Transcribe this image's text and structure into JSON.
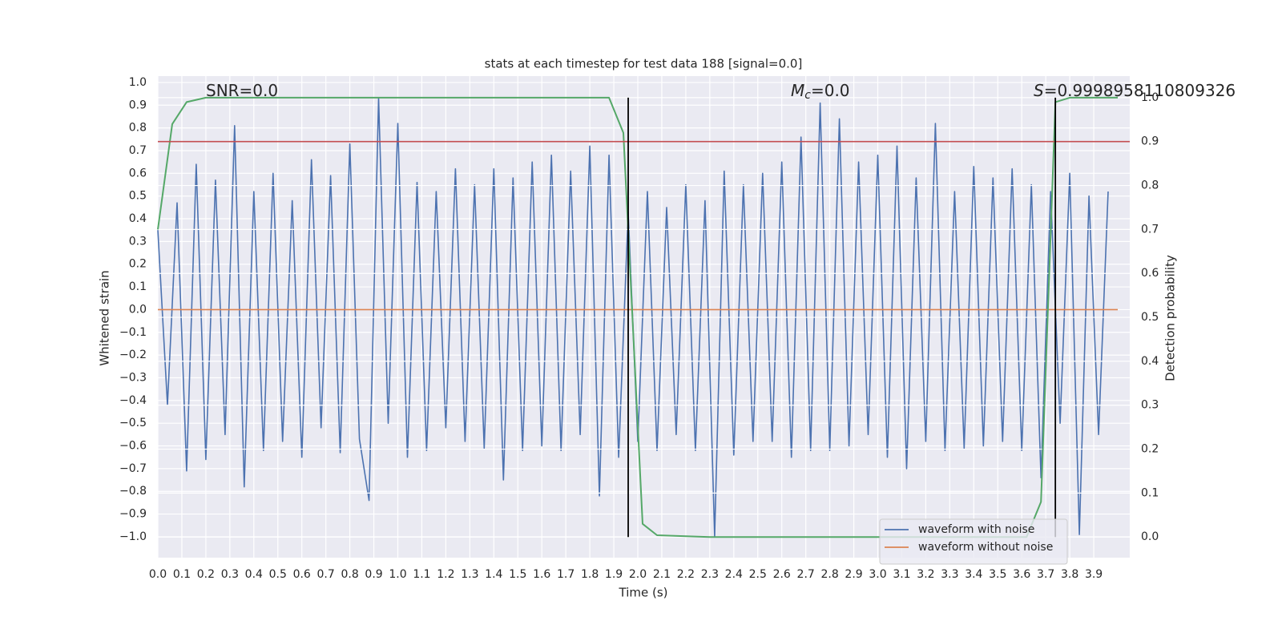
{
  "chart_data": {
    "type": "line",
    "title": "stats at each timestep for test data 188 [signal=0.0]",
    "xlabel": "Time (s)",
    "ylabel": "Whitened strain",
    "y2label": "Detection probability",
    "annotations": [
      {
        "text": "SNR=0.0"
      },
      {
        "symbol": "M",
        "subscript": "c",
        "text": "=0.0"
      },
      {
        "symbol": "S",
        "text": "=0.9998958110809326"
      }
    ],
    "xlim": [
      0,
      4.05
    ],
    "ylim": [
      -1.092,
      1.028
    ],
    "y2lim": [
      -0.047,
      1.049
    ],
    "grid": true,
    "legend": "lower right",
    "xticks": [
      {
        "value": 0,
        "label": "0.0"
      },
      {
        "value": 0.1,
        "label": "0.1"
      },
      {
        "value": 0.2,
        "label": "0.2"
      },
      {
        "value": 0.3,
        "label": "0.3"
      },
      {
        "value": 0.4,
        "label": "0.4"
      },
      {
        "value": 0.5,
        "label": "0.5"
      },
      {
        "value": 0.6,
        "label": "0.6"
      },
      {
        "value": 0.7,
        "label": "0.7"
      },
      {
        "value": 0.8,
        "label": "0.8"
      },
      {
        "value": 0.9,
        "label": "0.9"
      },
      {
        "value": 1,
        "label": "1.0"
      },
      {
        "value": 1.1,
        "label": "1.1"
      },
      {
        "value": 1.2,
        "label": "1.2"
      },
      {
        "value": 1.3,
        "label": "1.3"
      },
      {
        "value": 1.4,
        "label": "1.4"
      },
      {
        "value": 1.5,
        "label": "1.5"
      },
      {
        "value": 1.6,
        "label": "1.6"
      },
      {
        "value": 1.7,
        "label": "1.7"
      },
      {
        "value": 1.8,
        "label": "1.8"
      },
      {
        "value": 1.9,
        "label": "1.9"
      },
      {
        "value": 2,
        "label": "2.0"
      },
      {
        "value": 2.1,
        "label": "2.1"
      },
      {
        "value": 2.2,
        "label": "2.2"
      },
      {
        "value": 2.3,
        "label": "2.3"
      },
      {
        "value": 2.4,
        "label": "2.4"
      },
      {
        "value": 2.5,
        "label": "2.5"
      },
      {
        "value": 2.6,
        "label": "2.6"
      },
      {
        "value": 2.7,
        "label": "2.7"
      },
      {
        "value": 2.8,
        "label": "2.8"
      },
      {
        "value": 2.9,
        "label": "2.9"
      },
      {
        "value": 3,
        "label": "3.0"
      },
      {
        "value": 3.1,
        "label": "3.1"
      },
      {
        "value": 3.2,
        "label": "3.2"
      },
      {
        "value": 3.3,
        "label": "3.3"
      },
      {
        "value": 3.4,
        "label": "3.4"
      },
      {
        "value": 3.5,
        "label": "3.5"
      },
      {
        "value": 3.6,
        "label": "3.6"
      },
      {
        "value": 3.7,
        "label": "3.7"
      },
      {
        "value": 3.8,
        "label": "3.8"
      },
      {
        "value": 3.9,
        "label": "3.9"
      }
    ],
    "yticks": [
      {
        "value": -1,
        "label": "−1.0"
      },
      {
        "value": -0.9,
        "label": "−0.9"
      },
      {
        "value": -0.8,
        "label": "−0.8"
      },
      {
        "value": -0.7,
        "label": "−0.7"
      },
      {
        "value": -0.6,
        "label": "−0.6"
      },
      {
        "value": -0.5,
        "label": "−0.5"
      },
      {
        "value": -0.4,
        "label": "−0.4"
      },
      {
        "value": -0.3,
        "label": "−0.3"
      },
      {
        "value": -0.2,
        "label": "−0.2"
      },
      {
        "value": -0.1,
        "label": "−0.1"
      },
      {
        "value": 0,
        "label": "0.0"
      },
      {
        "value": 0.1,
        "label": "0.1"
      },
      {
        "value": 0.2,
        "label": "0.2"
      },
      {
        "value": 0.3,
        "label": "0.3"
      },
      {
        "value": 0.4,
        "label": "0.4"
      },
      {
        "value": 0.5,
        "label": "0.5"
      },
      {
        "value": 0.6,
        "label": "0.6"
      },
      {
        "value": 0.7,
        "label": "0.7"
      },
      {
        "value": 0.8,
        "label": "0.8"
      },
      {
        "value": 0.9,
        "label": "0.9"
      },
      {
        "value": 1,
        "label": "1.0"
      }
    ],
    "y2ticks": [
      {
        "value": 0,
        "label": "0.0"
      },
      {
        "value": 0.1,
        "label": "0.1"
      },
      {
        "value": 0.2,
        "label": "0.2"
      },
      {
        "value": 0.3,
        "label": "0.3"
      },
      {
        "value": 0.4,
        "label": "0.4"
      },
      {
        "value": 0.5,
        "label": "0.5"
      },
      {
        "value": 0.6,
        "label": "0.6"
      },
      {
        "value": 0.7,
        "label": "0.7"
      },
      {
        "value": 0.8,
        "label": "0.8"
      },
      {
        "value": 0.9,
        "label": "0.9"
      },
      {
        "value": 1,
        "label": "1.0"
      }
    ],
    "series": [
      {
        "name": "waveform with noise",
        "color": "#4c72b0",
        "x": [
          0,
          0.04,
          0.08,
          0.12,
          0.16,
          0.2,
          0.24,
          0.28,
          0.32,
          0.36,
          0.4,
          0.44,
          0.48,
          0.52,
          0.56,
          0.6,
          0.64,
          0.68,
          0.72,
          0.76,
          0.8,
          0.84,
          0.88,
          0.92,
          0.96,
          1,
          1.04,
          1.08,
          1.12,
          1.16,
          1.2,
          1.24,
          1.28,
          1.32,
          1.36,
          1.4,
          1.44,
          1.48,
          1.52,
          1.56,
          1.6,
          1.64,
          1.68,
          1.72,
          1.76,
          1.8,
          1.84,
          1.88,
          1.92,
          1.96,
          2,
          2.04,
          2.08,
          2.12,
          2.16,
          2.2,
          2.24,
          2.28,
          2.32,
          2.36,
          2.4,
          2.44,
          2.48,
          2.52,
          2.56,
          2.6,
          2.64,
          2.68,
          2.72,
          2.76,
          2.8,
          2.84,
          2.88,
          2.92,
          2.96,
          3,
          3.04,
          3.08,
          3.12,
          3.16,
          3.2,
          3.24,
          3.28,
          3.32,
          3.36,
          3.4,
          3.44,
          3.48,
          3.52,
          3.56,
          3.6,
          3.64,
          3.68,
          3.72,
          3.76,
          3.8,
          3.84,
          3.88,
          3.92,
          3.96
        ],
        "values": [
          0.35,
          -0.42,
          0.47,
          -0.71,
          0.64,
          -0.66,
          0.57,
          -0.55,
          0.81,
          -0.78,
          0.52,
          -0.62,
          0.6,
          -0.58,
          0.48,
          -0.65,
          0.66,
          -0.52,
          0.59,
          -0.63,
          0.73,
          -0.57,
          -0.84,
          0.93,
          -0.5,
          0.82,
          -0.65,
          0.56,
          -0.62,
          0.52,
          -0.52,
          0.62,
          -0.58,
          0.55,
          -0.61,
          0.62,
          -0.75,
          0.58,
          -0.62,
          0.65,
          -0.6,
          0.68,
          -0.62,
          0.61,
          -0.55,
          0.72,
          -0.82,
          0.68,
          -0.65,
          0.43,
          -0.58,
          0.52,
          -0.62,
          0.45,
          -0.55,
          0.55,
          -0.62,
          0.48,
          -1,
          0.61,
          -0.64,
          0.55,
          -0.58,
          0.6,
          -0.58,
          0.65,
          -0.65,
          0.76,
          -0.62,
          0.91,
          -0.62,
          0.84,
          -0.6,
          0.65,
          -0.55,
          0.68,
          -0.65,
          0.72,
          -0.7,
          0.58,
          -0.58,
          0.82,
          -0.62,
          0.52,
          -0.61,
          0.63,
          -0.6,
          0.58,
          -0.58,
          0.62,
          -0.62,
          0.55,
          -0.74,
          0.52,
          -0.5,
          0.6,
          -0.99,
          0.5,
          -0.55,
          0.52
        ]
      },
      {
        "name": "waveform without noise",
        "color": "#dd8452",
        "x": [
          0,
          4.0
        ],
        "values": [
          0,
          0
        ]
      },
      {
        "color": "#55a868",
        "axis": "y2",
        "x": [
          0,
          0.06,
          0.12,
          0.2,
          0.4,
          0.8,
          1.2,
          1.6,
          1.8,
          1.88,
          1.94,
          2.02,
          2.08,
          2.3,
          2.8,
          3.3,
          3.62,
          3.68,
          3.74,
          3.8,
          4.0
        ],
        "values": [
          0.7,
          0.94,
          0.99,
          1.0,
          1.0,
          1.0,
          1.0,
          1.0,
          1.0,
          1.0,
          0.92,
          0.03,
          0.004,
          0,
          0,
          0,
          0,
          0.08,
          0.99,
          1.0,
          1.0
        ]
      }
    ],
    "hline": {
      "value": 0.9,
      "axis": "y2",
      "color": "#c44e52"
    },
    "vlines": {
      "x": [
        1.96,
        3.74
      ],
      "ymin": 0,
      "ymax": 1,
      "axis": "y2",
      "color": "#000000"
    }
  }
}
